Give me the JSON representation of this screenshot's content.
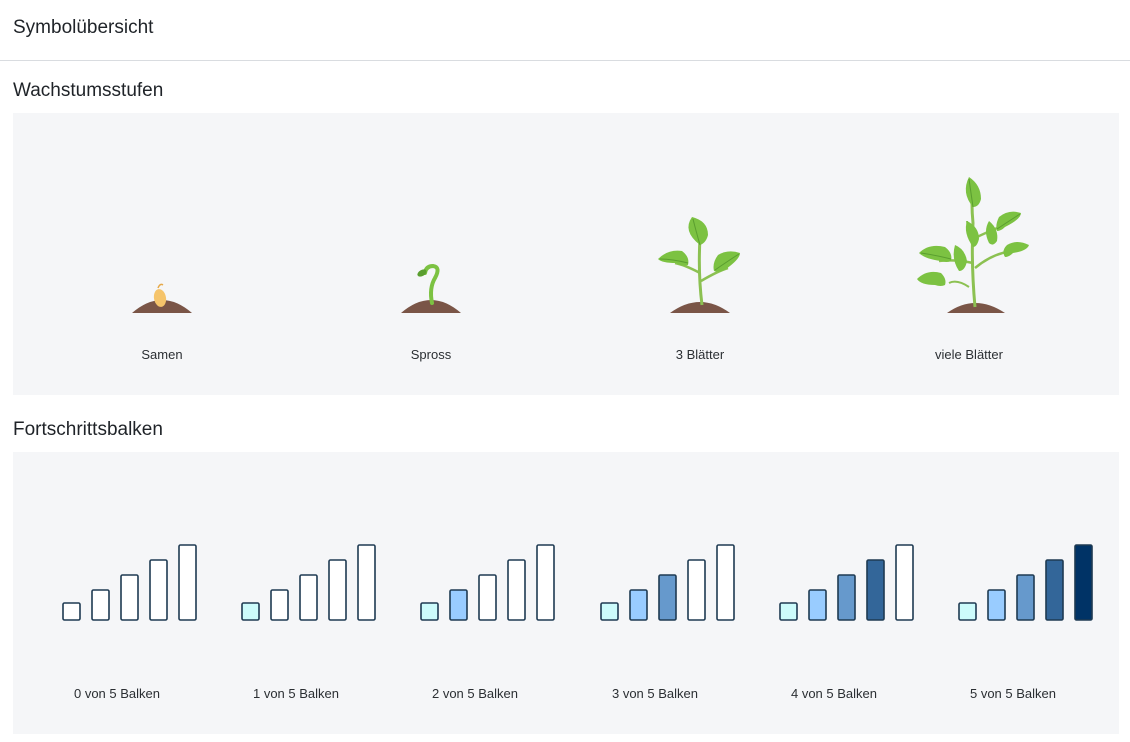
{
  "page": {
    "title": "Symbolübersicht"
  },
  "stages_section": {
    "title": "Wachstumsstufen",
    "items": [
      {
        "label": "Samen",
        "icon": "seed-icon"
      },
      {
        "label": "Spross",
        "icon": "sprout-icon"
      },
      {
        "label": "3 Blätter",
        "icon": "three-leaves-icon"
      },
      {
        "label": "viele Blätter",
        "icon": "many-leaves-icon"
      }
    ]
  },
  "bars_section": {
    "title": "Fortschrittsbalken",
    "total_bars": 5,
    "items": [
      {
        "label": "0 von 5 Balken",
        "filled": 0
      },
      {
        "label": "1 von 5 Balken",
        "filled": 1
      },
      {
        "label": "2 von 5 Balken",
        "filled": 2
      },
      {
        "label": "3 von 5 Balken",
        "filled": 3
      },
      {
        "label": "4 von 5 Balken",
        "filled": 4
      },
      {
        "label": "5 von 5 Balken",
        "filled": 5
      }
    ],
    "fill_colors": [
      "#ccfbfb",
      "#99ccff",
      "#6699cc",
      "#336699",
      "#003366"
    ],
    "empty_color": "#ffffff",
    "stroke_color": "#1e3a52"
  },
  "colors": {
    "soil": "#7a5547",
    "leaf": "#7cc242",
    "leaf_dark": "#5a9e2f",
    "stem": "#8cc152",
    "seed": "#f5c46b"
  }
}
